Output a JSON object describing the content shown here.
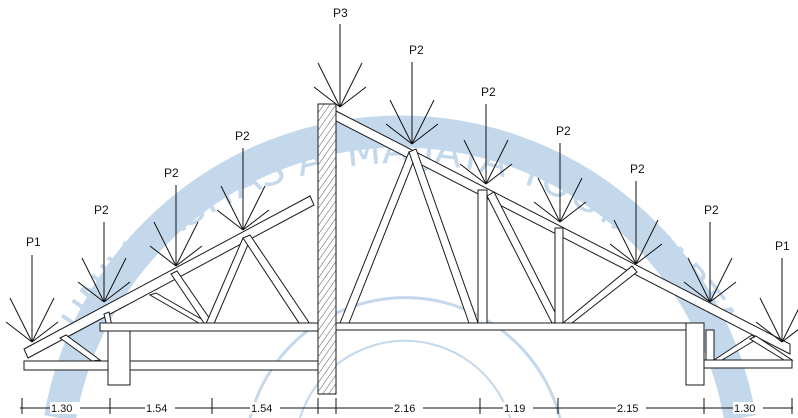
{
  "watermark": {
    "text": "UNIVERSITAS ATMA JAYA YOGYAKARTA",
    "color": "#c4d8ec"
  },
  "loads": [
    {
      "label": "P1"
    },
    {
      "label": "P2"
    },
    {
      "label": "P2"
    },
    {
      "label": "P2"
    },
    {
      "label": "P3"
    },
    {
      "label": "P2"
    },
    {
      "label": "P2"
    },
    {
      "label": "P2"
    },
    {
      "label": "P2"
    },
    {
      "label": "P2"
    },
    {
      "label": "P1"
    }
  ],
  "dimensions": [
    {
      "label": "1.30"
    },
    {
      "label": "1.54"
    },
    {
      "label": "1.54"
    },
    {
      "label": "2.16"
    },
    {
      "label": "1.19"
    },
    {
      "label": "2.15"
    },
    {
      "label": "1.30"
    }
  ]
}
